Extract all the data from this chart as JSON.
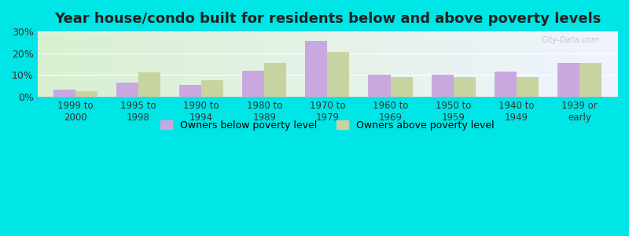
{
  "title": "Year house/condo built for residents below and above poverty levels",
  "categories": [
    "1999 to\n2000",
    "1995 to\n1998",
    "1990 to\n1994",
    "1980 to\n1989",
    "1970 to\n1979",
    "1960 to\n1969",
    "1950 to\n1959",
    "1940 to\n1949",
    "1939 or\nearly"
  ],
  "below_poverty": [
    3.0,
    6.5,
    5.5,
    12.0,
    25.5,
    10.0,
    10.0,
    11.5,
    15.5
  ],
  "above_poverty": [
    2.5,
    11.0,
    7.5,
    15.5,
    20.5,
    9.0,
    9.0,
    9.0,
    15.5
  ],
  "below_color": "#c9a8e0",
  "above_color": "#c8d4a0",
  "ylim": [
    0,
    30
  ],
  "yticks": [
    0,
    10,
    20,
    30
  ],
  "yticklabels": [
    "0%",
    "10%",
    "20%",
    "30%"
  ],
  "bar_width": 0.35,
  "outer_bg": "#00e5e5",
  "title_fontsize": 13,
  "legend_below_label": "Owners below poverty level",
  "legend_above_label": "Owners above poverty level",
  "watermark": "City-Data.com"
}
